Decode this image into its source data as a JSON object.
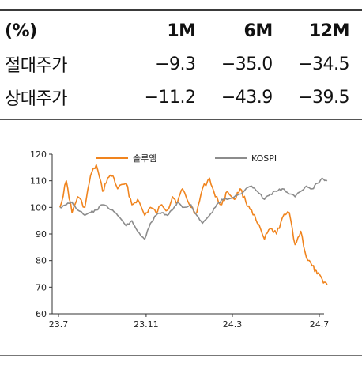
{
  "table": {
    "header": [
      "(%)",
      "1M",
      "6M",
      "12M"
    ],
    "rows": [
      {
        "label": "절대주가",
        "values": [
          "−9.3",
          "−35.0",
          "−34.5"
        ]
      },
      {
        "label": "상대주가",
        "values": [
          "−11.2",
          "−43.9",
          "−39.5"
        ]
      }
    ]
  },
  "chart_data": {
    "type": "line",
    "ylim": [
      60,
      120
    ],
    "yticks": [
      "60",
      "70",
      "80",
      "90",
      "100",
      "110",
      "120"
    ],
    "xticks": [
      "23.7",
      "23.11",
      "24.3",
      "24.7"
    ],
    "xlim_months": [
      "2023-07",
      "2024-07"
    ],
    "legend_placement": "top",
    "series": [
      {
        "name": "솔루엠",
        "color": "#F0841E",
        "x": [
          "2023-07-03",
          "2023-07-12",
          "2023-07-20",
          "2023-07-28",
          "2023-08-07",
          "2023-08-15",
          "2023-08-23",
          "2023-09-01",
          "2023-09-08",
          "2023-09-15",
          "2023-09-22",
          "2023-10-04",
          "2023-10-12",
          "2023-10-20",
          "2023-10-30",
          "2023-11-07",
          "2023-11-15",
          "2023-11-23",
          "2023-12-01",
          "2023-12-08",
          "2023-12-15",
          "2023-12-22",
          "2024-01-03",
          "2024-01-11",
          "2024-01-19",
          "2024-01-29",
          "2024-02-06",
          "2024-02-15",
          "2024-02-23",
          "2024-03-04",
          "2024-03-12",
          "2024-03-20",
          "2024-03-28",
          "2024-04-05",
          "2024-04-15",
          "2024-04-23",
          "2024-05-02",
          "2024-05-10",
          "2024-05-20",
          "2024-05-28",
          "2024-06-05",
          "2024-06-13",
          "2024-06-21",
          "2024-06-28",
          "2024-07-05",
          "2024-07-12"
        ],
        "values": [
          100,
          110,
          98,
          104,
          100,
          112,
          116,
          106,
          111,
          112,
          107,
          109,
          101,
          103,
          97,
          100,
          98,
          101,
          99,
          104,
          102,
          107,
          100,
          98,
          107,
          111,
          104,
          101,
          106,
          103,
          107,
          102,
          99,
          94,
          88,
          92,
          90,
          96,
          98,
          86,
          91,
          81,
          78,
          75,
          73,
          71
        ]
      },
      {
        "name": "KOSPI",
        "color": "#8C8C8C",
        "x": [
          "2023-07-03",
          "2023-07-12",
          "2023-07-20",
          "2023-07-28",
          "2023-08-07",
          "2023-08-15",
          "2023-08-23",
          "2023-09-01",
          "2023-09-08",
          "2023-09-15",
          "2023-09-22",
          "2023-10-04",
          "2023-10-12",
          "2023-10-20",
          "2023-10-30",
          "2023-11-07",
          "2023-11-15",
          "2023-11-23",
          "2023-12-01",
          "2023-12-08",
          "2023-12-15",
          "2023-12-22",
          "2024-01-03",
          "2024-01-11",
          "2024-01-19",
          "2024-01-29",
          "2024-02-06",
          "2024-02-15",
          "2024-02-23",
          "2024-03-04",
          "2024-03-12",
          "2024-03-20",
          "2024-03-28",
          "2024-04-05",
          "2024-04-15",
          "2024-04-23",
          "2024-05-02",
          "2024-05-10",
          "2024-05-20",
          "2024-05-28",
          "2024-06-05",
          "2024-06-13",
          "2024-06-21",
          "2024-06-28",
          "2024-07-05",
          "2024-07-12"
        ],
        "values": [
          100,
          101,
          102,
          99,
          97,
          98,
          99,
          101,
          100,
          99,
          97,
          93,
          95,
          91,
          88,
          94,
          97,
          98,
          97,
          99,
          102,
          100,
          101,
          97,
          94,
          97,
          100,
          103,
          103,
          104,
          105,
          107,
          108,
          106,
          103,
          105,
          106,
          107,
          105,
          104,
          106,
          108,
          107,
          109,
          111,
          110
        ]
      }
    ]
  }
}
